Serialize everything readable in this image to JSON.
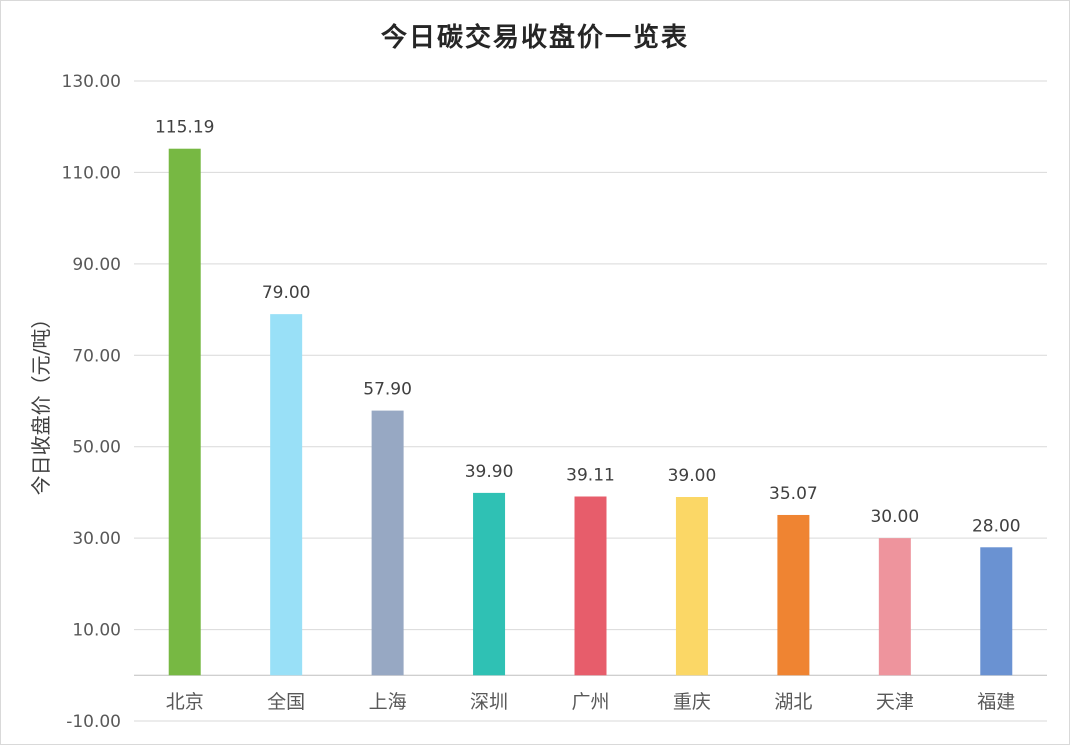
{
  "chart_data": {
    "type": "bar",
    "title": "今日碳交易收盘价一览表",
    "ylabel": "今日收盘价（元/吨）",
    "xlabel": "",
    "ylim": [
      -10,
      130
    ],
    "yticks": [
      130,
      110,
      90,
      70,
      50,
      30,
      10,
      -10
    ],
    "ytick_labels": [
      "130.00",
      "110.00",
      "90.00",
      "70.00",
      "50.00",
      "30.00",
      "10.00",
      "-10.00"
    ],
    "categories": [
      "北京",
      "全国",
      "上海",
      "深圳",
      "广州",
      "重庆",
      "湖北",
      "天津",
      "福建"
    ],
    "values": [
      115.19,
      79.0,
      57.9,
      39.9,
      39.11,
      39.0,
      35.07,
      30.0,
      28.0
    ],
    "value_labels": [
      "115.19",
      "79.00",
      "57.90",
      "39.90",
      "39.11",
      "39.00",
      "35.07",
      "30.00",
      "28.00"
    ],
    "colors": [
      "#77b843",
      "#99e0f7",
      "#97a8c3",
      "#2fc1b4",
      "#e75d6b",
      "#fbd766",
      "#ef8432",
      "#ee949d",
      "#6a92d2"
    ],
    "grid": true,
    "legend": "none"
  }
}
